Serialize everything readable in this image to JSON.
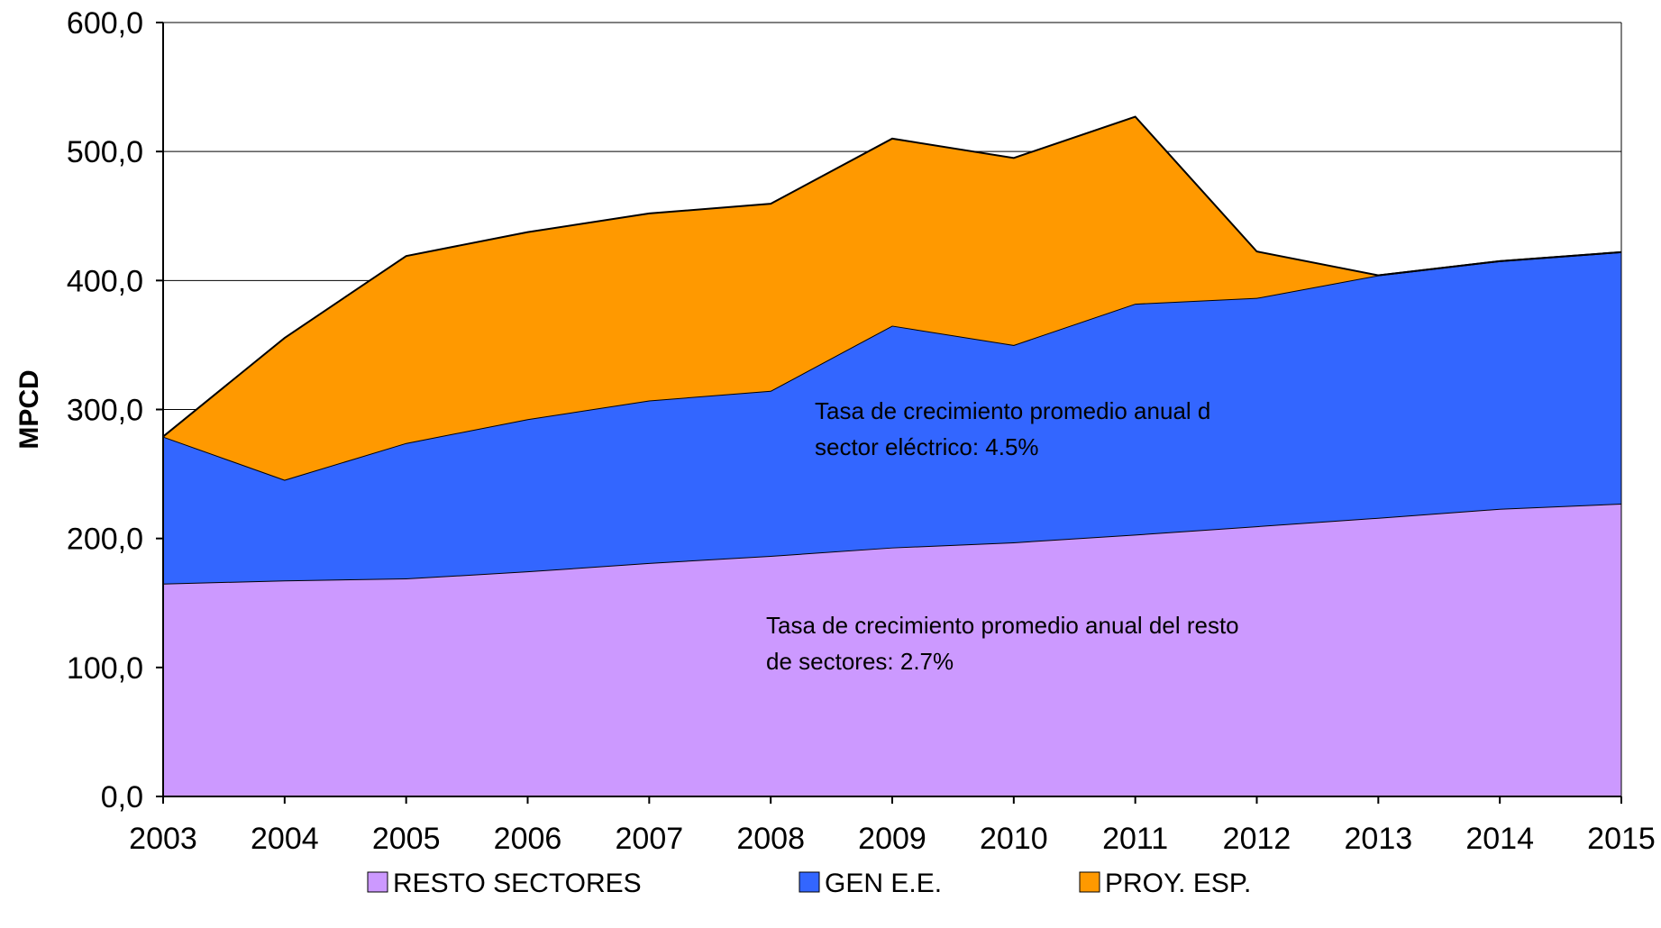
{
  "chart_data": {
    "type": "area",
    "stacked": true,
    "title": "",
    "xlabel": "",
    "ylabel": "MPCD",
    "ylim": [
      0,
      600
    ],
    "y_ticks": [
      "0,0",
      "100,0",
      "200,0",
      "300,0",
      "400,0",
      "500,0",
      "600,0"
    ],
    "y_tick_values": [
      0,
      100,
      200,
      300,
      400,
      500,
      600
    ],
    "categories": [
      "2003",
      "2004",
      "2005",
      "2006",
      "2007",
      "2008",
      "2009",
      "2010",
      "2011",
      "2012",
      "2013",
      "2014",
      "2015"
    ],
    "grid": "horizontal",
    "legend_position": "bottom",
    "series": [
      {
        "name": "RESTO SECTORES",
        "color": "#cc99ff",
        "values": [
          165,
          167.5,
          169,
          174.5,
          181,
          186.5,
          193,
          197,
          203,
          209.5,
          216,
          223,
          227
        ]
      },
      {
        "name": "GEN E.E.",
        "color": "#3366ff",
        "values": [
          114,
          78,
          105,
          118,
          126,
          128,
          172,
          153,
          179,
          177,
          188,
          192,
          195
        ]
      },
      {
        "name": "PROY. ESP.",
        "color": "#ff9900",
        "values": [
          0,
          110,
          145,
          145,
          145,
          145,
          145,
          145,
          145,
          36,
          0,
          0,
          0
        ]
      }
    ],
    "annotations": [
      {
        "lines": [
          "Tasa de crecimiento promedio anual d",
          "sector eléctrico: 4.5%"
        ]
      },
      {
        "lines": [
          "Tasa de crecimiento promedio anual del resto",
          "de sectores: 2.7%"
        ]
      }
    ]
  }
}
